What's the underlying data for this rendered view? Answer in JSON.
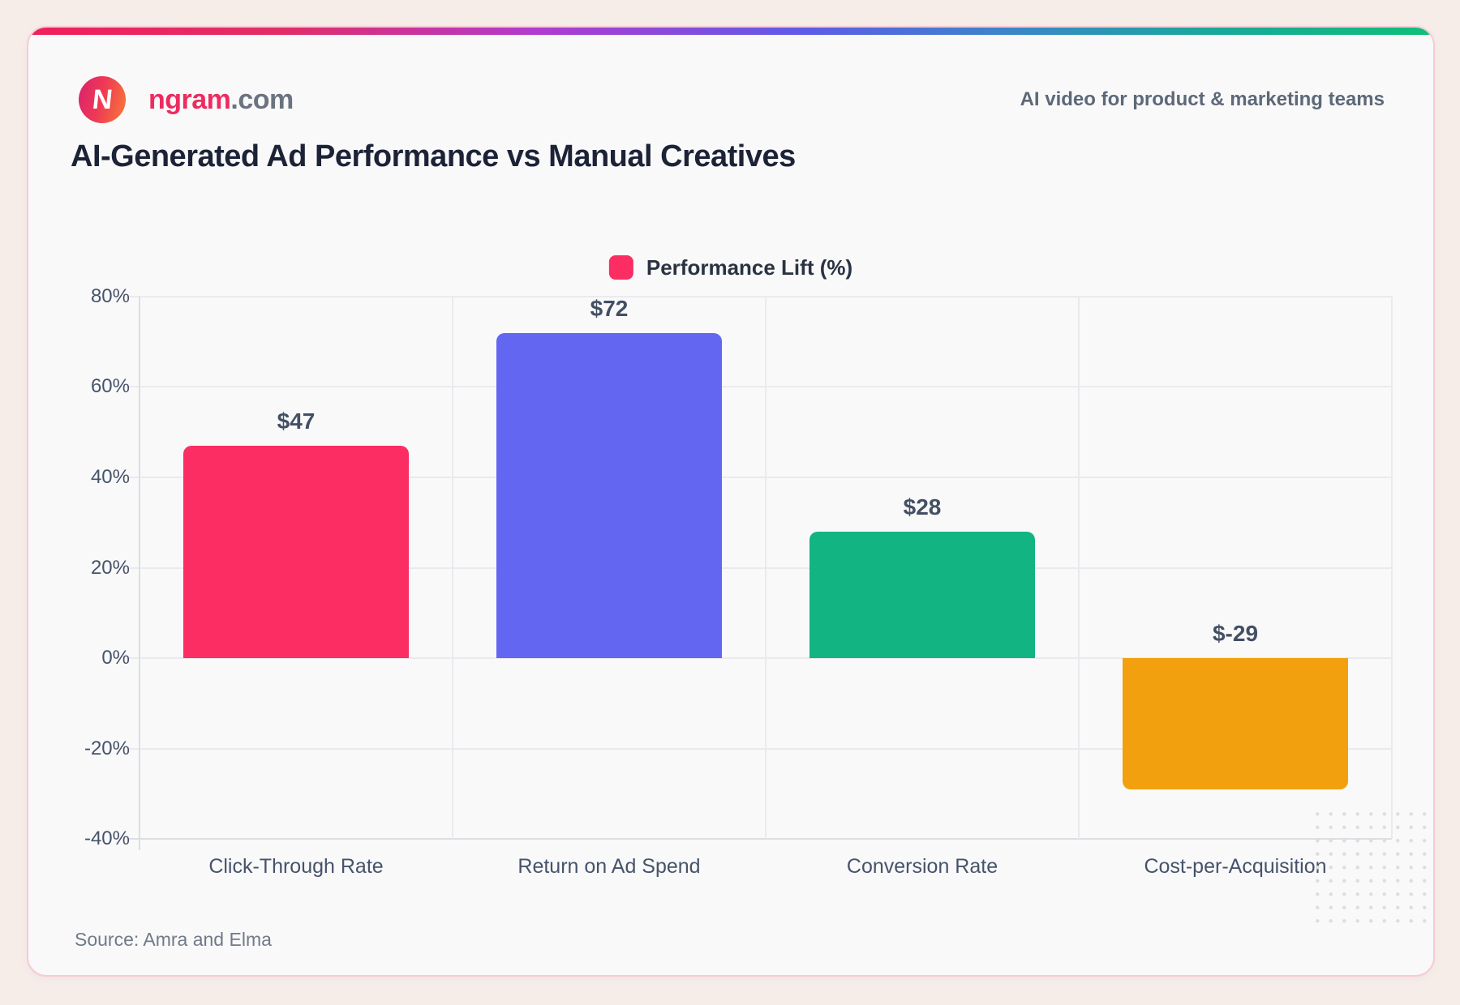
{
  "header": {
    "brand": "ngram",
    "brand_suffix": ".com",
    "logo_letter": "N",
    "tagline": "AI video for product & marketing teams"
  },
  "title": "AI-Generated Ad Performance vs Manual Creatives",
  "legend": {
    "label": "Performance Lift (%)",
    "swatch_color": "#FB2D63"
  },
  "source": "Source: Amra and Elma",
  "chart_data": {
    "type": "bar",
    "title": "AI-Generated Ad Performance vs Manual Creatives",
    "series_name": "Performance Lift (%)",
    "categories": [
      "Click-Through Rate",
      "Return on Ad Spend",
      "Conversion Rate",
      "Cost-per-Acquisition"
    ],
    "values": [
      47,
      72,
      28,
      -29
    ],
    "value_labels": [
      "$47",
      "$72",
      "$28",
      "$-29"
    ],
    "bar_colors": [
      "#FB2D63",
      "#6366F1",
      "#12B581",
      "#F2A00D"
    ],
    "xlabel": "",
    "ylabel": "",
    "ylim": [
      -40,
      80
    ],
    "ytick_step": 20,
    "ytick_labels": [
      "80%",
      "60%",
      "40%",
      "20%",
      "0%",
      "-20%",
      "-40%"
    ],
    "grid": true,
    "legend_position": "top-center"
  },
  "colors": {
    "page_background": "#F6EDE9",
    "card_background": "#F9F9FA",
    "card_border": "#F6CBD5",
    "gridline": "#EAEAEE",
    "axis_line": "#DCDEE4",
    "title_text": "#1C2337",
    "axis_text": "#46536A",
    "brand_pink": "#EE2B5F",
    "gradient_accent": [
      "#F01F5B",
      "#B23ACF",
      "#5E5BE8",
      "#0FBF77"
    ]
  }
}
